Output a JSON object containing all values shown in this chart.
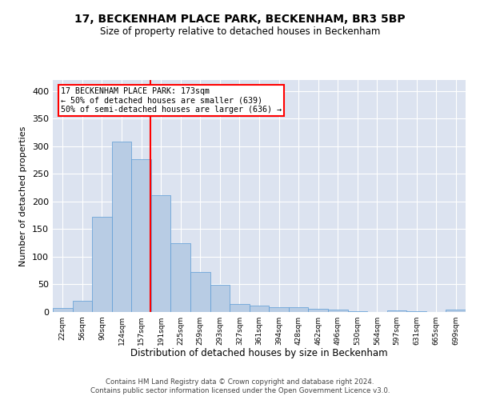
{
  "title": "17, BECKENHAM PLACE PARK, BECKENHAM, BR3 5BP",
  "subtitle": "Size of property relative to detached houses in Beckenham",
  "xlabel": "Distribution of detached houses by size in Beckenham",
  "ylabel": "Number of detached properties",
  "bar_labels": [
    "22sqm",
    "56sqm",
    "90sqm",
    "124sqm",
    "157sqm",
    "191sqm",
    "225sqm",
    "259sqm",
    "293sqm",
    "327sqm",
    "361sqm",
    "394sqm",
    "428sqm",
    "462sqm",
    "496sqm",
    "530sqm",
    "564sqm",
    "597sqm",
    "631sqm",
    "665sqm",
    "699sqm"
  ],
  "bar_heights": [
    7,
    20,
    172,
    309,
    276,
    211,
    125,
    72,
    49,
    14,
    12,
    8,
    8,
    6,
    4,
    2,
    0,
    3,
    1,
    0,
    4
  ],
  "bar_color": "#b8cce4",
  "bar_edgecolor": "#5b9bd5",
  "vline_color": "red",
  "annotation_text": "17 BECKENHAM PLACE PARK: 173sqm\n← 50% of detached houses are smaller (639)\n50% of semi-detached houses are larger (636) →",
  "annotation_box_edgecolor": "red",
  "ylim": [
    0,
    420
  ],
  "yticks": [
    0,
    50,
    100,
    150,
    200,
    250,
    300,
    350,
    400
  ],
  "background_color": "#dce3f0",
  "grid_color": "#ffffff",
  "footer1": "Contains HM Land Registry data © Crown copyright and database right 2024.",
  "footer2": "Contains public sector information licensed under the Open Government Licence v3.0."
}
